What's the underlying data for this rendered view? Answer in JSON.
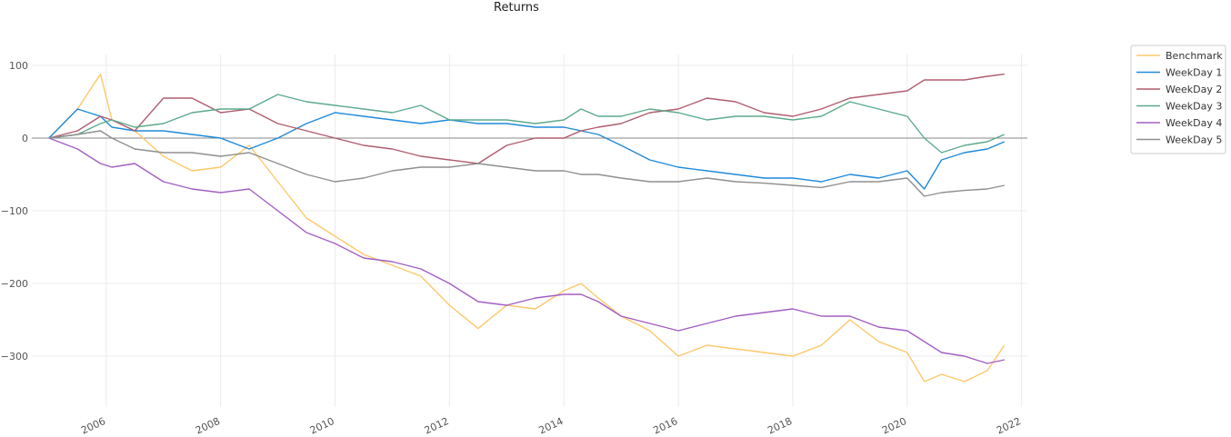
{
  "chart_data": {
    "type": "line",
    "title": "Returns",
    "xlabel": "",
    "ylabel": "",
    "xlim": [
      2004.7,
      2022.1
    ],
    "ylim": [
      -370,
      115
    ],
    "x_ticks": [
      2006,
      2008,
      2010,
      2012,
      2014,
      2016,
      2018,
      2020,
      2022
    ],
    "y_ticks": [
      100,
      0,
      -100,
      -200,
      -300
    ],
    "y_tick_labels": [
      "100",
      "0",
      "−100",
      "−200",
      "−300"
    ],
    "grid": true,
    "zero_line": true,
    "legend_position": "top-right-outside",
    "x": [
      2005.0,
      2005.5,
      2005.9,
      2006.1,
      2006.5,
      2007.0,
      2007.5,
      2008.0,
      2008.5,
      2009.0,
      2009.5,
      2010.0,
      2010.5,
      2011.0,
      2011.5,
      2012.0,
      2012.5,
      2013.0,
      2013.5,
      2014.0,
      2014.3,
      2014.6,
      2015.0,
      2015.5,
      2016.0,
      2016.5,
      2017.0,
      2017.5,
      2018.0,
      2018.5,
      2019.0,
      2019.5,
      2020.0,
      2020.3,
      2020.6,
      2021.0,
      2021.4,
      2021.7
    ],
    "series": [
      {
        "name": "Benchmark",
        "color": "#fdc86a",
        "values": [
          0,
          40,
          88,
          25,
          10,
          -25,
          -45,
          -40,
          -10,
          -60,
          -110,
          -135,
          -160,
          -175,
          -190,
          -230,
          -262,
          -230,
          -235,
          -210,
          -200,
          -220,
          -245,
          -265,
          -300,
          -285,
          -290,
          -295,
          -300,
          -285,
          -250,
          -280,
          -295,
          -335,
          -325,
          -335,
          -320,
          -285
        ]
      },
      {
        "name": "WeekDay 1",
        "color": "#1f8adb",
        "values": [
          0,
          40,
          30,
          15,
          10,
          10,
          5,
          0,
          -15,
          0,
          20,
          35,
          30,
          25,
          20,
          25,
          20,
          20,
          15,
          15,
          10,
          5,
          -10,
          -30,
          -40,
          -45,
          -50,
          -55,
          -55,
          -60,
          -50,
          -55,
          -45,
          -70,
          -30,
          -20,
          -15,
          -5
        ]
      },
      {
        "name": "WeekDay 2",
        "color": "#b05d6f",
        "values": [
          0,
          10,
          30,
          25,
          10,
          55,
          55,
          35,
          40,
          20,
          10,
          0,
          -10,
          -15,
          -25,
          -30,
          -35,
          -10,
          0,
          0,
          10,
          15,
          20,
          35,
          40,
          55,
          50,
          35,
          30,
          40,
          55,
          60,
          65,
          80,
          80,
          80,
          85,
          88
        ]
      },
      {
        "name": "WeekDay 3",
        "color": "#5daa8c",
        "values": [
          0,
          5,
          20,
          25,
          15,
          20,
          35,
          40,
          40,
          60,
          50,
          45,
          40,
          35,
          45,
          25,
          25,
          25,
          20,
          25,
          40,
          30,
          30,
          40,
          35,
          25,
          30,
          30,
          25,
          30,
          50,
          40,
          30,
          0,
          -20,
          -10,
          -5,
          5
        ]
      },
      {
        "name": "WeekDay 4",
        "color": "#a25fc2",
        "values": [
          0,
          -15,
          -35,
          -40,
          -35,
          -60,
          -70,
          -75,
          -70,
          -100,
          -130,
          -145,
          -165,
          -170,
          -180,
          -200,
          -225,
          -230,
          -220,
          -215,
          -215,
          -225,
          -245,
          -255,
          -265,
          -255,
          -245,
          -240,
          -235,
          -245,
          -245,
          -260,
          -265,
          -280,
          -295,
          -300,
          -310,
          -305
        ]
      },
      {
        "name": "WeekDay 5",
        "color": "#8f8f8f",
        "values": [
          0,
          5,
          10,
          0,
          -15,
          -20,
          -20,
          -25,
          -20,
          -35,
          -50,
          -60,
          -55,
          -45,
          -40,
          -40,
          -35,
          -40,
          -45,
          -45,
          -50,
          -50,
          -55,
          -60,
          -60,
          -55,
          -60,
          -62,
          -65,
          -68,
          -60,
          -60,
          -55,
          -80,
          -75,
          -72,
          -70,
          -65
        ]
      }
    ]
  }
}
